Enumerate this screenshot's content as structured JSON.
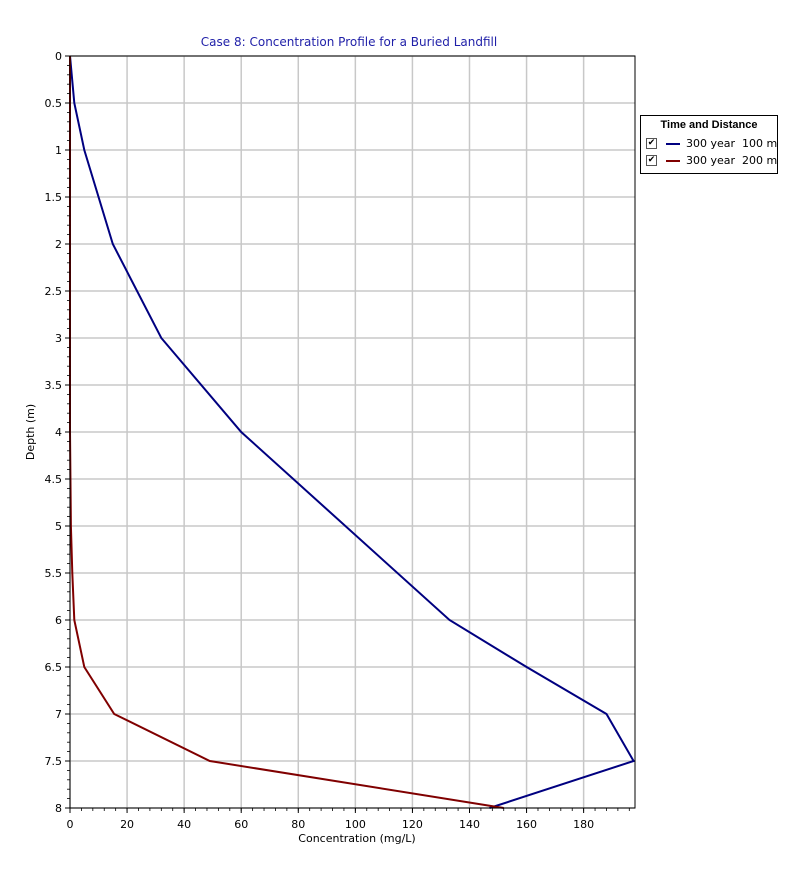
{
  "chart_data": {
    "type": "line",
    "title": "Case 8: Concentration Profile for a Buried Landfill",
    "xlabel": "Concentration (mg/L)",
    "ylabel": "Depth (m)",
    "xlim": [
      0,
      198
    ],
    "ylim": [
      0,
      8
    ],
    "y_inverted": true,
    "xticks": [
      "0",
      "20",
      "40",
      "60",
      "80",
      "100",
      "120",
      "140",
      "160",
      "180"
    ],
    "yticks": [
      "0",
      "0.5",
      "1",
      "1.5",
      "2",
      "2.5",
      "3",
      "3.5",
      "4",
      "4.5",
      "5",
      "5.5",
      "6",
      "6.5",
      "7",
      "7.5",
      "8"
    ],
    "grid": true,
    "legend_title": "Time and Distance",
    "legend_position": "right",
    "series": [
      {
        "name": "300 year  100 m",
        "color": "#000080",
        "checked": true,
        "x": [
          0,
          1.5,
          5,
          15,
          32,
          60,
          133,
          160,
          188,
          197.5,
          147
        ],
        "y": [
          0,
          0.5,
          1,
          2,
          3,
          4,
          6,
          6.5,
          7,
          7.5,
          8
        ]
      },
      {
        "name": "300 year  200 m",
        "color": "#800000",
        "checked": true,
        "x": [
          0,
          0,
          0,
          0,
          0,
          0.3,
          0.8,
          1.5,
          5,
          15.5,
          49,
          152
        ],
        "y": [
          0,
          1,
          2,
          3,
          4,
          5,
          5.5,
          6,
          6.5,
          7,
          7.5,
          8
        ]
      }
    ]
  }
}
